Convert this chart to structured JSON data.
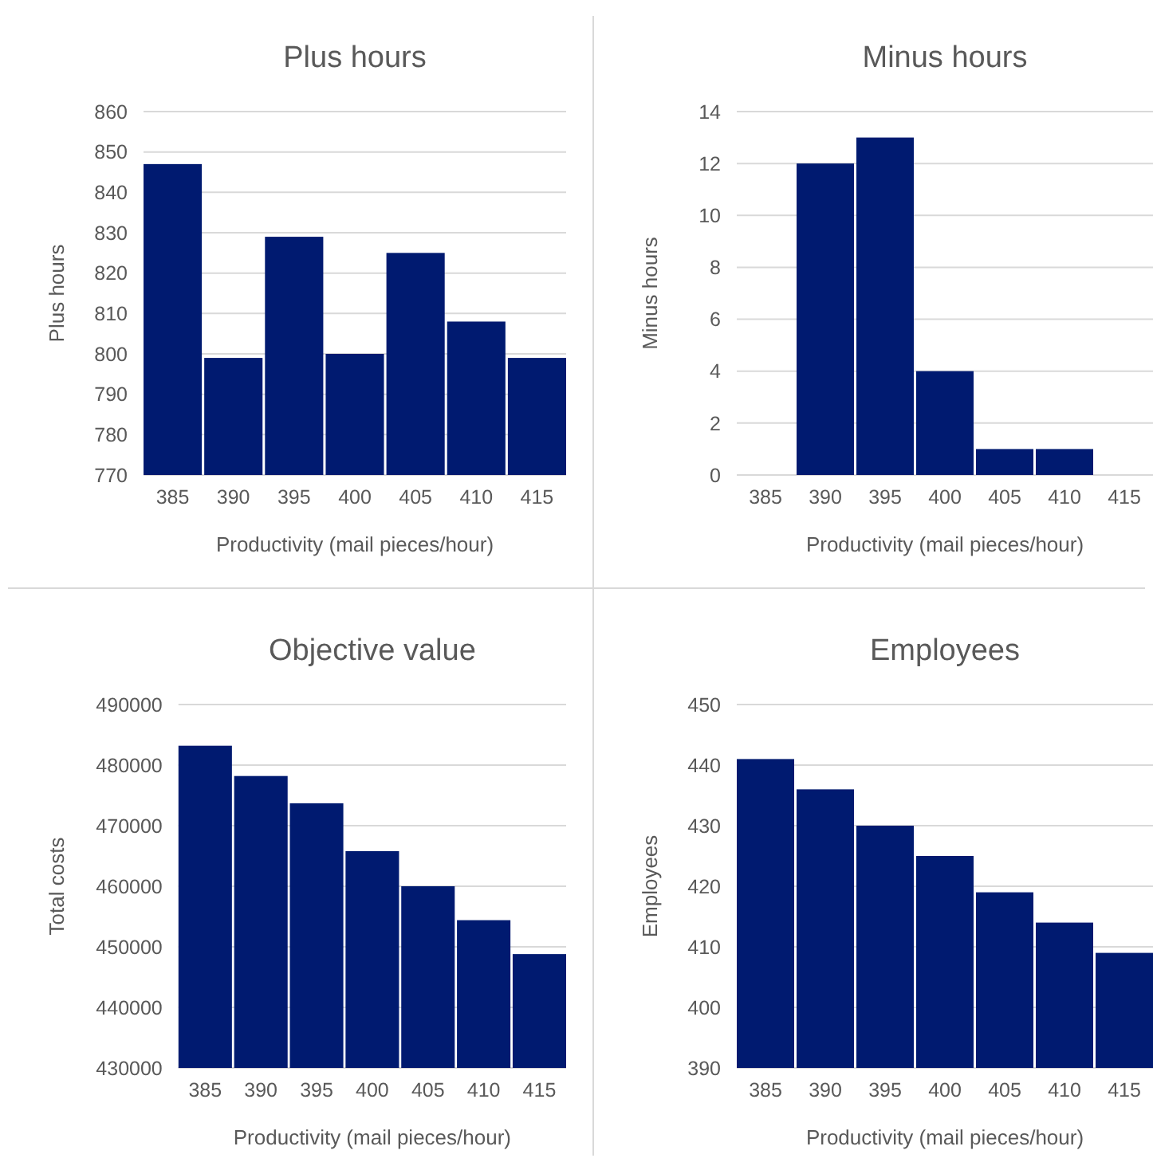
{
  "chart_data": [
    {
      "type": "bar",
      "title": "Plus hours",
      "xlabel": "Productivity (mail pieces/hour)",
      "ylabel": "Plus hours",
      "categories": [
        "385",
        "390",
        "395",
        "400",
        "405",
        "410",
        "415"
      ],
      "values": [
        847,
        799,
        829,
        800,
        825,
        808,
        799
      ],
      "color": "#001a70",
      "ylim": [
        770,
        860
      ],
      "yticks": [
        770,
        780,
        790,
        800,
        810,
        820,
        830,
        840,
        850,
        860
      ],
      "grid": "y"
    },
    {
      "type": "bar",
      "title": "Minus hours",
      "xlabel": "Productivity (mail pieces/hour)",
      "ylabel": "Minus hours",
      "categories": [
        "385",
        "390",
        "395",
        "400",
        "405",
        "410",
        "415"
      ],
      "values": [
        0,
        12,
        13,
        4,
        1,
        1,
        0
      ],
      "color": "#001a70",
      "ylim": [
        0,
        14
      ],
      "yticks": [
        0,
        2,
        4,
        6,
        8,
        10,
        12,
        14
      ],
      "grid": "y"
    },
    {
      "type": "bar",
      "title": "Objective value",
      "xlabel": "Productivity (mail pieces/hour)",
      "ylabel": "Total costs",
      "categories": [
        "385",
        "390",
        "395",
        "400",
        "405",
        "410",
        "415"
      ],
      "values": [
        483200,
        478200,
        473700,
        465800,
        460000,
        454400,
        448800
      ],
      "color": "#001a70",
      "ylim": [
        430000,
        490000
      ],
      "yticks": [
        430000,
        440000,
        450000,
        460000,
        470000,
        480000,
        490000
      ],
      "grid": "y"
    },
    {
      "type": "bar",
      "title": "Employees",
      "xlabel": "Productivity (mail pieces/hour)",
      "ylabel": "Employees",
      "categories": [
        "385",
        "390",
        "395",
        "400",
        "405",
        "410",
        "415"
      ],
      "values": [
        441,
        436,
        430,
        425,
        419,
        414,
        409
      ],
      "color": "#001a70",
      "ylim": [
        390,
        450
      ],
      "yticks": [
        390,
        400,
        410,
        420,
        430,
        440,
        450
      ],
      "grid": "y"
    }
  ]
}
